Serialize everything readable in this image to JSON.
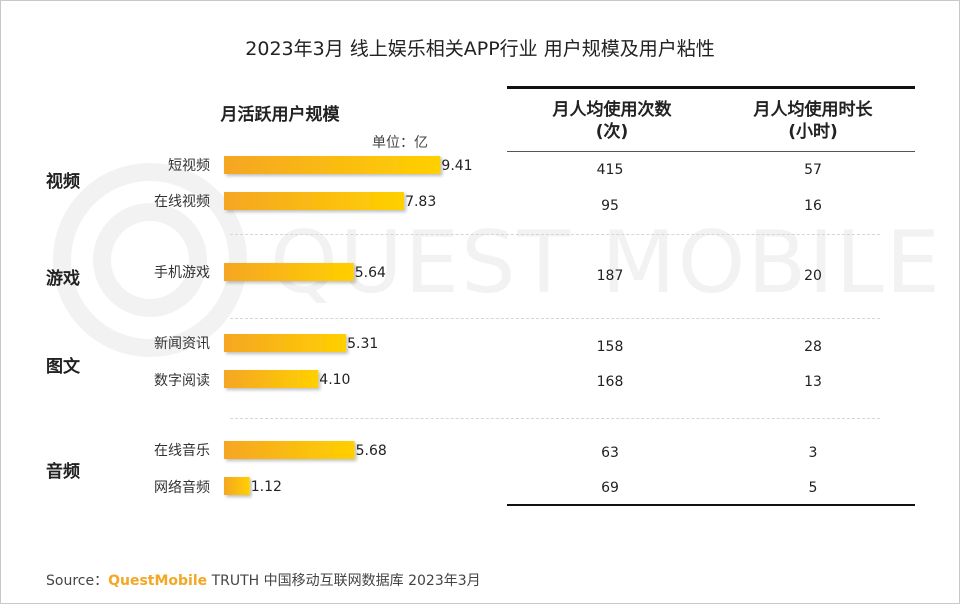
{
  "title": "2023年3月 线上娱乐相关APP行业 用户规模及用户粘性",
  "left_header": "月活跃用户规模",
  "unit": "单位：亿",
  "table_headers": [
    {
      "line1": "月人均使用次数",
      "line2": "(次)"
    },
    {
      "line1": "月人均使用时长",
      "line2": "(小时)"
    }
  ],
  "groups": [
    "视频",
    "游戏",
    "图文",
    "音频"
  ],
  "watermark": "QUEST MOBILE",
  "source": {
    "prefix": "Source：",
    "brand": "QuestMobile",
    "rest": " TRUTH 中国移动互联网数据库 2023年3月"
  },
  "colors": {
    "bar_start": "#f5a623",
    "bar_end": "#ffd000",
    "rule": "#111111",
    "brand": "#f5a623"
  },
  "chart_data": {
    "type": "bar",
    "title": "月活跃用户规模",
    "unit": "亿",
    "categories": [
      "短视频",
      "在线视频",
      "手机游戏",
      "新闻资讯",
      "数字阅读",
      "在线音乐",
      "网络音频"
    ],
    "groups": [
      "视频",
      "视频",
      "游戏",
      "图文",
      "图文",
      "音频",
      "音频"
    ],
    "values": [
      9.41,
      7.83,
      5.64,
      5.31,
      4.1,
      5.68,
      1.12
    ],
    "value_labels": [
      "9.41",
      "7.83",
      "5.64",
      "5.31",
      "4.10",
      "5.68",
      "1.12"
    ],
    "table": {
      "columns": [
        "月人均使用次数(次)",
        "月人均使用时长(小时)"
      ],
      "sessions": [
        415,
        95,
        187,
        158,
        168,
        63,
        69
      ],
      "hours": [
        57,
        16,
        20,
        28,
        13,
        3,
        5
      ]
    }
  }
}
